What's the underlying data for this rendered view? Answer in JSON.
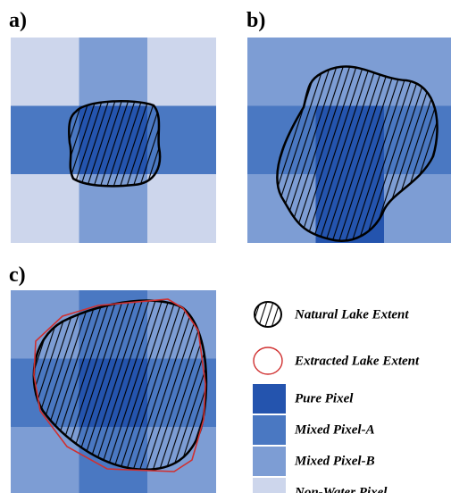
{
  "panels": [
    {
      "label": "a)"
    },
    {
      "label": "b)"
    },
    {
      "label": "c)"
    }
  ],
  "legend": [
    {
      "label": "Natural Lake Extent"
    },
    {
      "label": "Extracted Lake Extent"
    },
    {
      "label": "Pure Pixel",
      "color": "#2454ae"
    },
    {
      "label": "Mixed Pixel-A",
      "color": "#4a78c2"
    },
    {
      "label": "Mixed Pixel-B",
      "color": "#7d9dd4"
    },
    {
      "label": "Non-Water Pixel",
      "color": "#cdd6ec"
    }
  ]
}
